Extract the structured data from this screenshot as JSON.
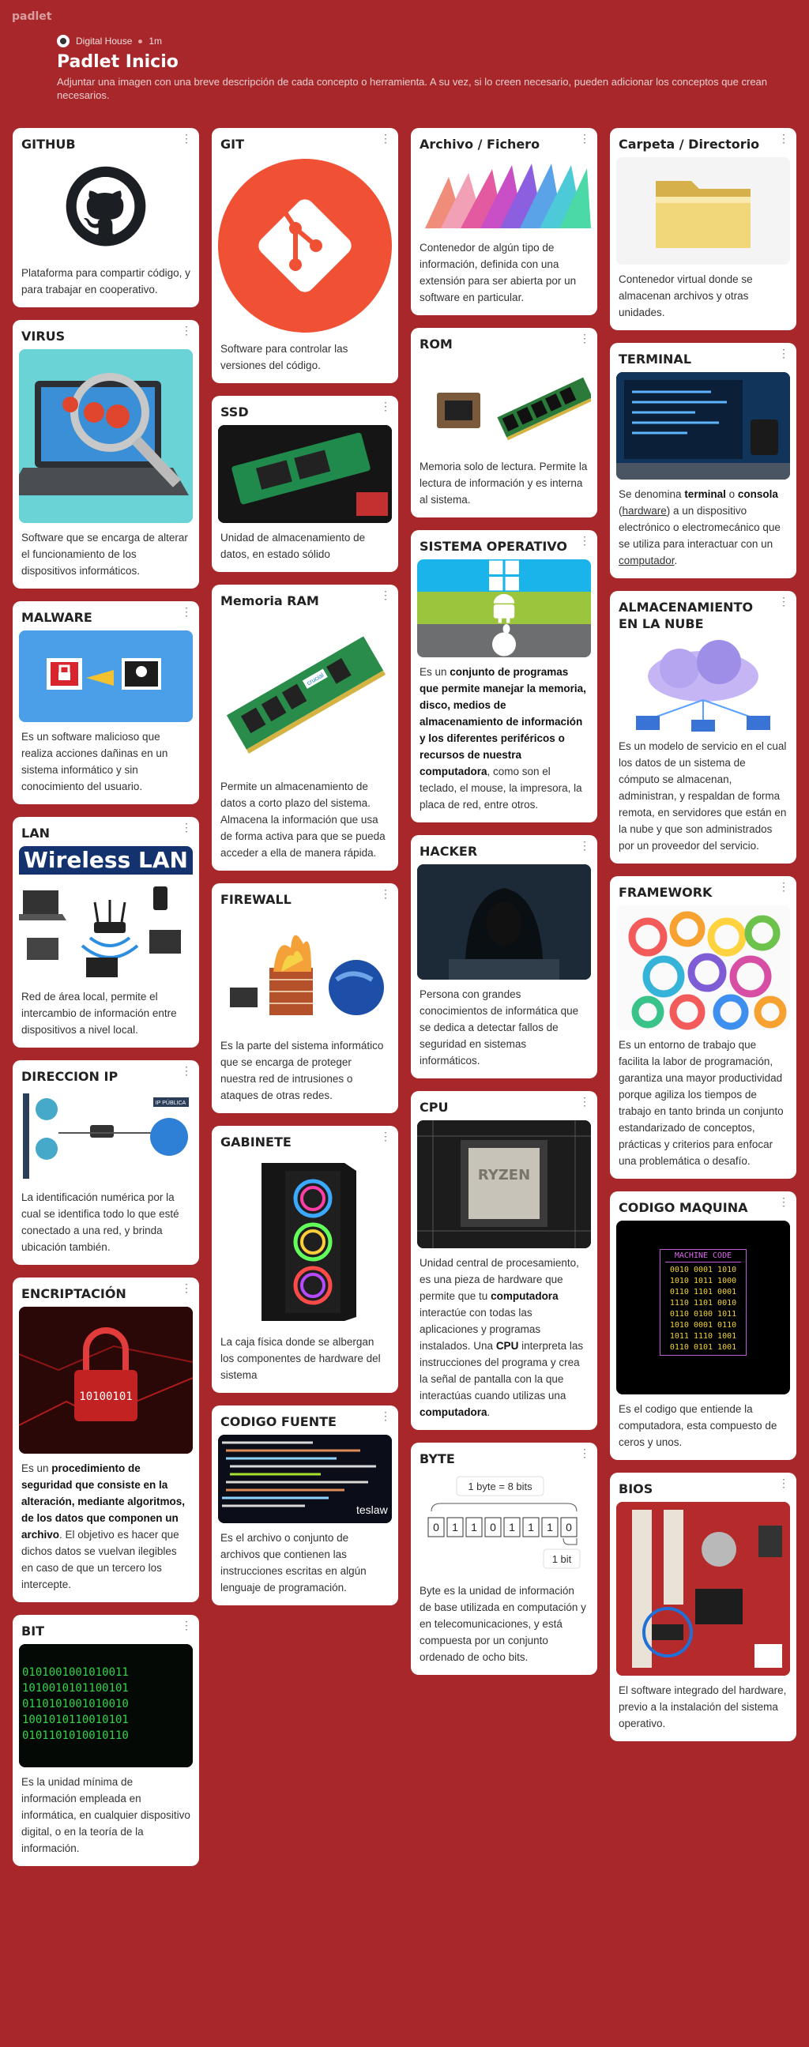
{
  "app": {
    "logo": "padlet"
  },
  "header": {
    "author": "Digital House",
    "time": "1m",
    "title": "Padlet Inicio",
    "subtitle": "Adjuntar una imagen con una breve descripción de cada concepto o herramienta. A su vez, si lo creen necesario, pueden adicionar los conceptos que crean necesarios."
  },
  "colors": {
    "background": "#a8272a",
    "card": "#ffffff"
  },
  "cards": {
    "github": {
      "title": "GITHUB",
      "body": "Plataforma para compartir código, y para trabajar en cooperativo.",
      "icon": "github-logo"
    },
    "virus": {
      "title": "VIRUS",
      "body": "Software que se encarga de alterar el funcionamiento de los dispositivos informáticos."
    },
    "malware": {
      "title": "MALWARE",
      "body": "Es un software malicioso que realiza acciones dañinas en un sistema informático y sin conocimiento del usuario."
    },
    "lan": {
      "title": "LAN",
      "image_text": "Wireless LAN",
      "body": "Red de área local, permite el intercambio de información entre dispositivos a nivel local."
    },
    "ip": {
      "title": "DIRECCION IP",
      "image_text": "IP PÚBLICA",
      "body": "La identificación numérica por la cual se identifica todo lo que esté conectado a una red, y brinda ubicación también."
    },
    "encriptacion": {
      "title": "ENCRIPTACIÓN",
      "image_text": "10100101",
      "body_bold": "procedimiento de seguridad que consiste en la alteración, mediante algoritmos, de los datos que componen un archivo",
      "body_pre": "Es un ",
      "body_post": ". El objetivo es hacer que dichos datos se vuelvan ilegibles en caso de que un tercero los intercepte."
    },
    "bit": {
      "title": "BIT",
      "body": "Es la unidad mínima de información empleada en informática, en cualquier dispositivo digital, o en la teoría de la información."
    },
    "git": {
      "title": "GIT",
      "body": "Software para controlar las versiones del código."
    },
    "ssd": {
      "title": "SSD",
      "body": "Unidad de almacenamiento de datos, en estado sólido"
    },
    "ram": {
      "title": "Memoria RAM",
      "image_text": "crucial",
      "body": "Permite un almacenamiento de datos a corto plazo del sistema. Almacena la información que usa de forma activa para que se pueda acceder a ella de manera rápida."
    },
    "firewall": {
      "title": "FIREWALL",
      "body": "Es la parte del sistema informático que se encarga de proteger nuestra red de intrusiones o ataques de otras redes."
    },
    "gabinete": {
      "title": "GABINETE",
      "body": "La caja física donde se albergan los componentes de hardware del sistema"
    },
    "codigofuente": {
      "title": "CODIGO FUENTE",
      "image_text": "teslaw",
      "body": "Es el archivo o conjunto de archivos que contienen las instrucciones escritas en algún lenguaje de programación."
    },
    "archivo": {
      "title": "Archivo / Fichero",
      "body": "Contenedor de algún tipo de información, definida con una extensión para ser abierta por un software en particular."
    },
    "rom": {
      "title": "ROM",
      "body": "Memoria solo de lectura. Permite la lectura de información y es interna al sistema."
    },
    "so": {
      "title": "SISTEMA OPERATIVO",
      "body_pre": "Es un ",
      "body_bold": "conjunto de programas que permite manejar la memoria, disco, medios de almacenamiento de información y los diferentes periféricos o recursos de nuestra computadora",
      "body_post": ", como son el teclado, el mouse, la impresora, la placa de red, entre otros."
    },
    "hacker": {
      "title": "HACKER",
      "body": "Persona con grandes conocimientos de informática que se dedica a detectar fallos de seguridad en sistemas informáticos."
    },
    "cpu": {
      "title": "CPU",
      "image_text": "RYZEN",
      "body_1": "Unidad central de procesamiento, es una pieza de hardware que permite que tu ",
      "bold_1": "computadora",
      "body_2": " interactúe con todas las aplicaciones y programas instalados. Una ",
      "bold_2": "CPU",
      "body_3": " interpreta las instrucciones del programa y crea la señal de pantalla con la que interactúas cuando utilizas una ",
      "bold_3": "computadora",
      "body_4": "."
    },
    "byte": {
      "title": "BYTE",
      "diagram_top": "1 byte = 8 bits",
      "bits": [
        "0",
        "1",
        "1",
        "0",
        "1",
        "1",
        "1",
        "0"
      ],
      "diagram_bottom": "1 bit",
      "body": "Byte  es la unidad de información de base utilizada en computación y en telecomunicaciones, y está compuesta por un conjunto ordenado de ocho bits."
    },
    "carpeta": {
      "title": "Carpeta / Directorio",
      "body": "Contenedor virtual donde se almacenan archivos y otras unidades."
    },
    "terminal": {
      "title": "TERMINAL",
      "body_pre": " Se denomina ",
      "bold_1": "terminal",
      "body_mid1": " o ",
      "bold_2": "consola",
      "body_mid2": " (",
      "link_1": "hardware",
      "body_mid3": ") a un dispositivo electrónico o electromecánico que se utiliza para interactuar con un ",
      "link_2": "computador",
      "body_post": "."
    },
    "nube": {
      "title": "ALMACENAMIENTO EN LA NUBE",
      "body": "Es un modelo de servicio en el cual los datos de un sistema de cómputo se almacenan, administran, y respaldan de forma remota, en servidores que están en la nube y que son administrados por un proveedor del servicio."
    },
    "framework": {
      "title": "FRAMEWORK",
      "body": "Es un entorno de trabajo que facilita la labor de programación, garantiza una mayor productividad porque agiliza los tiempos de trabajo en tanto brinda un conjunto estandarizado de conceptos, prácticas y criterios para enfocar una problemática o desafío."
    },
    "codigomaquina": {
      "title": "CODIGO MAQUINA",
      "image_title": "MACHINE CODE",
      "image_lines": [
        "0010 0001 1010",
        "1010 1011 1000",
        "0110 1101 0001",
        "1110 1101 0010",
        "0110 0100 1011",
        "1010 0001 0110",
        "1011 1110 1001",
        "0110 0101 1001"
      ],
      "body": "Es el codigo que entiende la computadora, esta compuesto de ceros y unos."
    },
    "bios": {
      "title": "BIOS",
      "body": "El software integrado del hardware, previo a la instalación del sistema operativo."
    }
  }
}
